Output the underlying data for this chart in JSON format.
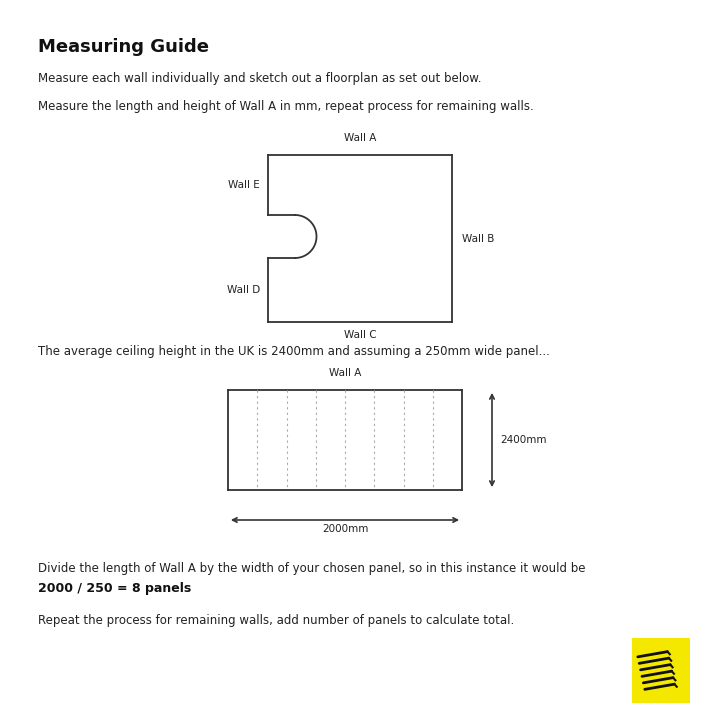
{
  "title": "Measuring Guide",
  "text1": "Measure each wall individually and sketch out a floorplan as set out below.",
  "text2": "Measure the length and height of Wall A in mm, repeat process for remaining walls.",
  "text3": "The average ceiling height in the UK is 2400mm and assuming a 250mm wide panel...",
  "text4": "Divide the length of Wall A by the width of your chosen panel, so in this instance it would be",
  "text4b": "2000 / 250 = 8 panels",
  "text5": "Repeat the process for remaining walls, add number of panels to calculate total.",
  "wall_a_label": "Wall A",
  "wall_b_label": "Wall B",
  "wall_c_label": "Wall C",
  "wall_d_label": "Wall D",
  "wall_e_label": "Wall E",
  "panel_wall_label": "Wall A",
  "width_label": "2000mm",
  "height_label": "2400mm",
  "bg_color": "#ffffff",
  "line_color": "#333333",
  "yellow_color": "#f5e800",
  "n_panels": 8,
  "title_fontsize": 13,
  "body_fontsize": 8.5,
  "label_fontsize": 7.5
}
